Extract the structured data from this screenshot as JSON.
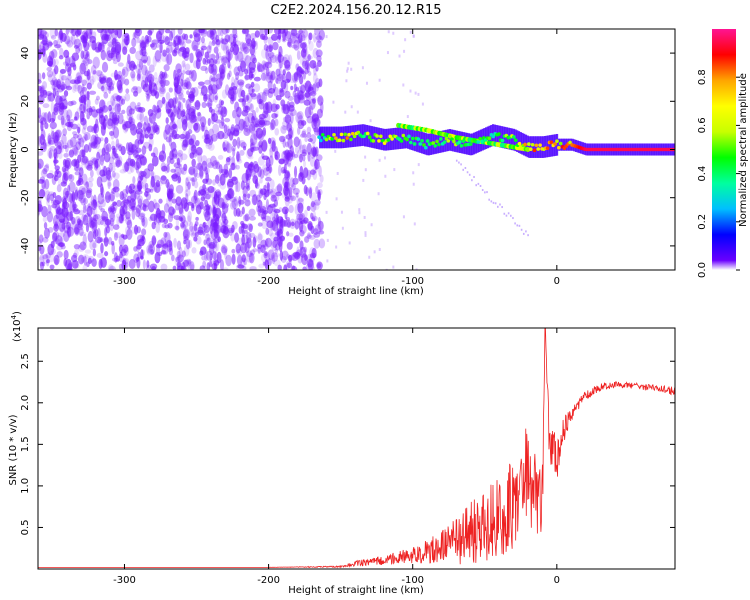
{
  "title": "C2E2.2024.156.20.12.R15",
  "chart_data": [
    {
      "type": "heatmap",
      "xlabel": "Height of straight line (km)",
      "ylabel": "Frequency (Hz)",
      "xlim": [
        -360,
        82
      ],
      "ylim": [
        -50,
        50
      ],
      "x_ticks": [
        -300,
        -200,
        -100,
        0
      ],
      "y_ticks": [
        -40,
        -20,
        0,
        20,
        40
      ],
      "colorbar": {
        "label": "Normalized spectral amplitude",
        "range": [
          0,
          1
        ],
        "ticks": [
          0.0,
          0.2,
          0.4,
          0.6,
          0.8
        ],
        "colormap": [
          "#6a00ff",
          "#0000ff",
          "#00bfff",
          "#00ff9f",
          "#00ff00",
          "#c8ff00",
          "#ffff00",
          "#ffa500",
          "#ff0000",
          "#ff1493"
        ]
      },
      "noise_region_x": [
        -360,
        -163
      ],
      "signal_track": [
        {
          "x": -165,
          "freq": 5,
          "amp": 0.3
        },
        {
          "x": -150,
          "freq": 5,
          "amp": 0.85
        },
        {
          "x": -135,
          "freq": 6,
          "amp": 0.55
        },
        {
          "x": -120,
          "freq": 4,
          "amp": 0.75
        },
        {
          "x": -105,
          "freq": 5,
          "amp": 0.5
        },
        {
          "x": -90,
          "freq": 2,
          "amp": 0.45
        },
        {
          "x": -75,
          "freq": 4,
          "amp": 0.55
        },
        {
          "x": -60,
          "freq": 2,
          "amp": 0.5
        },
        {
          "x": -45,
          "freq": 6,
          "amp": 0.45
        },
        {
          "x": -30,
          "freq": 4,
          "amp": 0.55
        },
        {
          "x": -20,
          "freq": 1,
          "amp": 0.8
        },
        {
          "x": -10,
          "freq": 1,
          "amp": 0.85
        },
        {
          "x": 0,
          "freq": 2,
          "amp": 0.85
        },
        {
          "x": 10,
          "freq": 2,
          "amp": 0.8
        },
        {
          "x": 20,
          "freq": 0,
          "amp": 0.95
        },
        {
          "x": 50,
          "freq": 0,
          "amp": 0.95
        },
        {
          "x": 80,
          "freq": 0,
          "amp": 0.95
        }
      ],
      "upper_branch": [
        {
          "x": -110,
          "freq": 10
        },
        {
          "x": -90,
          "freq": 8
        },
        {
          "x": -70,
          "freq": 5
        },
        {
          "x": -50,
          "freq": 3
        },
        {
          "x": -30,
          "freq": 1
        },
        {
          "x": -20,
          "freq": 0
        }
      ]
    },
    {
      "type": "line",
      "xlabel": "Height of straight line (km)",
      "ylabel": "SNR (10 * v/v)",
      "y_multiplier_label": "(x10",
      "y_multiplier_exp": "4",
      "y_multiplier_close": ")",
      "xlim": [
        -360,
        82
      ],
      "ylim": [
        0,
        2.9
      ],
      "x_ticks": [
        -300,
        -200,
        -100,
        0
      ],
      "y_ticks": [
        0.5,
        1.0,
        1.5,
        2.0,
        2.5
      ],
      "series": [
        {
          "color": "#ee2222",
          "x": [
            -360,
            -300,
            -200,
            -150,
            -140,
            -120,
            -100,
            -90,
            -70,
            -50,
            -40,
            -30,
            -25,
            -20,
            -15,
            -10,
            -8,
            -5,
            0,
            5,
            10,
            15,
            20,
            30,
            40,
            50,
            60,
            70,
            82
          ],
          "y": [
            0.02,
            0.02,
            0.02,
            0.03,
            0.07,
            0.12,
            0.18,
            0.25,
            0.4,
            0.6,
            0.75,
            0.9,
            1.1,
            1.3,
            1.0,
            0.9,
            2.9,
            1.5,
            1.4,
            1.7,
            1.9,
            2.0,
            2.1,
            2.2,
            2.23,
            2.22,
            2.2,
            2.18,
            2.15
          ],
          "jitter": [
            0,
            0,
            0,
            0.01,
            0.03,
            0.06,
            0.1,
            0.15,
            0.3,
            0.45,
            0.55,
            0.6,
            0.6,
            0.65,
            0.5,
            0.45,
            0,
            0.3,
            0.3,
            0.15,
            0.12,
            0.08,
            0.06,
            0.05,
            0.04,
            0.04,
            0.04,
            0.04,
            0.05
          ]
        }
      ]
    }
  ]
}
